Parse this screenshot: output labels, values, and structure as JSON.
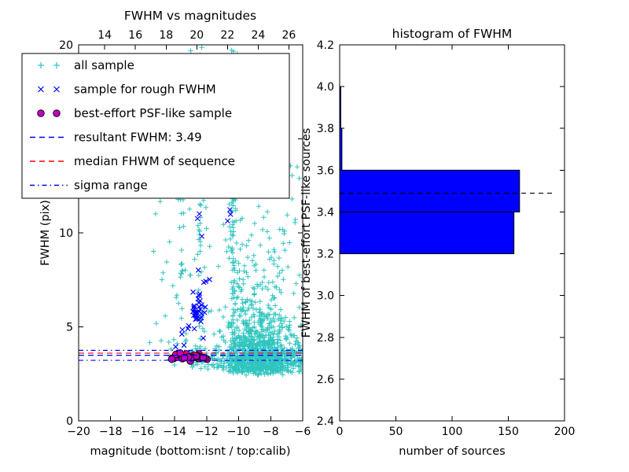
{
  "chart_data": [
    {
      "type": "scatter",
      "title": "FWHM vs magnitudes",
      "xlabel": "magnitude (bottom:isnt / top:calib)",
      "ylabel": "FWHM (pix)",
      "xlim": [
        -20,
        -6
      ],
      "ylim": [
        0,
        20
      ],
      "top_xlim": [
        12.3,
        26.9
      ],
      "xticks": [
        -20,
        -18,
        -16,
        -14,
        -12,
        -10,
        -8,
        -6
      ],
      "xtick_labels": [
        "−20",
        "−18",
        "−16",
        "−14",
        "−12",
        "−10",
        "−8",
        "−6"
      ],
      "yticks": [
        0,
        5,
        10,
        15,
        20
      ],
      "ytick_labels": [
        "0",
        "5",
        "10",
        "15",
        "20"
      ],
      "top_xticks": [
        14,
        16,
        18,
        20,
        22,
        24,
        26
      ],
      "top_xtick_labels": [
        "14",
        "16",
        "18",
        "20",
        "22",
        "24",
        "26"
      ],
      "grid": false,
      "legend_position": "upper left",
      "seed": 42,
      "legend": [
        {
          "label": "all sample",
          "marker": "plus",
          "color": "#2fc5bf"
        },
        {
          "label": "sample for rough FWHM",
          "marker": "x",
          "color": "#0000ff"
        },
        {
          "label": "best-effort PSF-like sample",
          "marker": "circle",
          "color": "#bf00bf"
        },
        {
          "label": "resultant FWHM: 3.49",
          "marker": "line-dashed",
          "color": "#0000ff"
        },
        {
          "label": "median FHWM of sequence",
          "marker": "line-dashed",
          "color": "#ff0000"
        },
        {
          "label": "sigma range",
          "marker": "line-dashdot",
          "color": "#0000ff"
        }
      ],
      "lines": [
        {
          "name": "resultant-fwhm",
          "y": 3.49,
          "style": "dashed",
          "color": "#0000ff"
        },
        {
          "name": "median-fhwm",
          "y": 3.6,
          "style": "dashed",
          "color": "#ff0000"
        },
        {
          "name": "sigma-upper",
          "y": 3.75,
          "style": "dashdot",
          "color": "#0000ff"
        },
        {
          "name": "sigma-lower",
          "y": 3.22,
          "style": "dashdot",
          "color": "#0000ff"
        }
      ],
      "series": [
        {
          "name": "all sample",
          "marker": "plus",
          "color": "#2fc5bf",
          "clusters": [
            {
              "n": 1000,
              "x": [
                "normal",
                -8.7,
                1.25,
                -11.9,
                -5.95
              ],
              "y": [
                "logn",
                2.35,
                0.25,
                0.85,
                2.3,
                19.8
              ]
            },
            {
              "n": 130,
              "x": [
                "normal",
                -10.35,
                0.12,
                -10.8,
                -9.9
              ],
              "y": [
                "uniform",
                2.6,
                19.9
              ]
            },
            {
              "n": 70,
              "x": [
                "normal",
                -12.35,
                0.13,
                -12.8,
                -11.9
              ],
              "y": [
                "uniform",
                3.0,
                19.9
              ]
            },
            {
              "n": 45,
              "x": [
                "normal",
                -13.6,
                0.15,
                -14.1,
                -13.1
              ],
              "y": [
                "uniform",
                3.0,
                17.0
              ]
            },
            {
              "n": 170,
              "x": [
                "uniform",
                -14.4,
                -5.95
              ],
              "y": [
                "normal",
                3.25,
                0.3,
                2.45,
                4.2
              ]
            },
            {
              "n": 85,
              "x": [
                "uniform",
                -15.2,
                -6.0
              ],
              "y": [
                "uniform",
                4.0,
                19.8
              ]
            },
            {
              "n": 8,
              "x": [
                "uniform",
                -15.6,
                -14.4
              ],
              "y": [
                "uniform",
                3.0,
                14.0
              ]
            }
          ]
        },
        {
          "name": "sample for rough FWHM",
          "marker": "x",
          "color": "#0000ff",
          "clusters": [
            {
              "n": 34,
              "x": [
                "normal",
                -12.55,
                0.28,
                -13.3,
                -11.9
              ],
              "y": [
                "normal",
                5.7,
                0.7,
                4.4,
                7.4
              ]
            },
            {
              "n": 12,
              "x": [
                "normal",
                -13.4,
                0.3,
                -14.1,
                -12.8
              ],
              "y": [
                "uniform",
                3.2,
                5.2
              ]
            },
            {
              "n": 8,
              "x": [
                "normal",
                -12.3,
                0.22,
                -12.9,
                -11.8
              ],
              "y": [
                "uniform",
                7.2,
                12.2
              ]
            },
            {
              "n": 3,
              "x": [
                "normal",
                -10.6,
                0.1,
                -10.9,
                -10.3
              ],
              "y": [
                "uniform",
                10.2,
                11.3
              ]
            }
          ]
        },
        {
          "name": "best-effort PSF-like sample",
          "marker": "circle",
          "color": "#bf00bf",
          "edge": "#000000",
          "clusters": [
            {
              "n": 30,
              "x": [
                "uniform",
                -14.2,
                -11.75
              ],
              "y": [
                "normal",
                3.38,
                0.09,
                3.15,
                3.62
              ]
            }
          ]
        }
      ]
    },
    {
      "type": "bar",
      "orientation": "horizontal",
      "title": "histogram of FWHM",
      "xlabel": "number of sources",
      "ylabel": "FWHM of best-effort PSF-like sources",
      "xlim": [
        0,
        200
      ],
      "ylim": [
        2.4,
        4.2
      ],
      "xticks": [
        0,
        50,
        100,
        150,
        200
      ],
      "xtick_labels": [
        "0",
        "50",
        "100",
        "150",
        "200"
      ],
      "yticks": [
        2.4,
        2.6,
        2.8,
        3.0,
        3.2,
        3.4,
        3.6,
        3.8,
        4.0,
        4.2
      ],
      "ytick_labels": [
        "2.4",
        "2.6",
        "2.8",
        "3.0",
        "3.2",
        "3.4",
        "3.6",
        "3.8",
        "4.0",
        "4.2"
      ],
      "bar_color": "#0000ff",
      "bin_edges": [
        2.4,
        2.6,
        2.8,
        3.0,
        3.2,
        3.4,
        3.6,
        3.8,
        4.0,
        4.2
      ],
      "counts": [
        0,
        0,
        0,
        0,
        155,
        160,
        2,
        1,
        0
      ],
      "dashed_line": {
        "y": 3.49,
        "x_end": 190,
        "color": "#000000"
      }
    }
  ]
}
